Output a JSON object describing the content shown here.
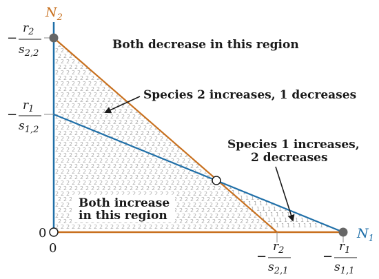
{
  "axes": {
    "x_label": "N",
    "x_label_sub": "1",
    "y_label": "N",
    "y_label_sub": "2",
    "origin_x": "0",
    "origin_y": "0"
  },
  "ticks": {
    "y_top": {
      "sign": "−",
      "num": "r",
      "num_sub": "2",
      "den": "s",
      "den_sub": "2,2"
    },
    "y_mid": {
      "sign": "−",
      "num": "r",
      "num_sub": "1",
      "den": "s",
      "den_sub": "1,2"
    },
    "x_mid": {
      "sign": "−",
      "num": "r",
      "num_sub": "2",
      "den": "s",
      "den_sub": "2,1"
    },
    "x_right": {
      "sign": "−",
      "num": "r",
      "num_sub": "1",
      "den": "s",
      "den_sub": "1,1"
    }
  },
  "regions": {
    "both_decrease": "Both decrease in this region",
    "species2_up": "Species 2 increases, 1 decreases",
    "species1_up_line1": "Species 1 increases,",
    "species1_up_line2": "2 decreases",
    "both_increase_line1": "Both increase",
    "both_increase_line2": "in this region"
  },
  "pattern_glyphs": [
    "1",
    "2"
  ],
  "colors": {
    "blue": "#1f6fa8",
    "orange": "#c8701e",
    "marker": "#666666",
    "pattern": "#aaaaaa",
    "text": "#1a1a1a"
  }
}
